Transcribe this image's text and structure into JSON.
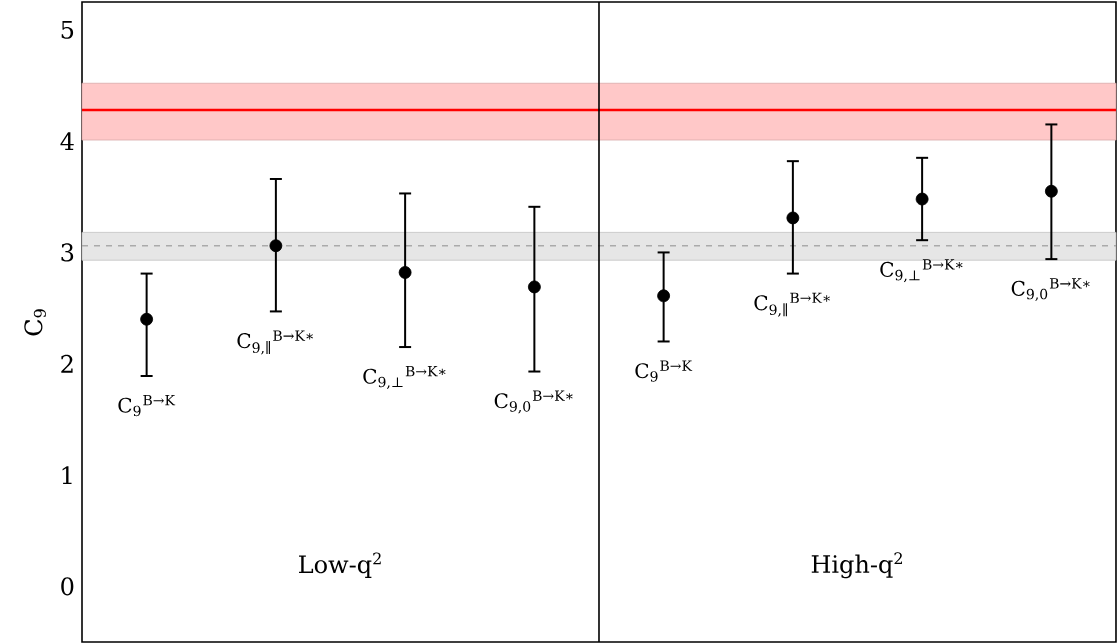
{
  "chart_data": {
    "type": "scatter",
    "ylabel": "C$_{9}$",
    "categories": [
      "C$_{9}$$^{B→K}$",
      "C$_{9,∥}$$^{B→K∗}$",
      "C$_{9,⊥}$$^{B→K∗}$",
      "C$_{9,0}$$^{B→K∗}$",
      "C$_{9}$$^{B→K}$",
      "C$_{9,∥}$$^{B→K∗}$",
      "C$_{9,⊥}$$^{B→K∗}$",
      "C$_{9,0}$$^{B→K∗}$"
    ],
    "values": [
      2.4,
      3.06,
      2.82,
      2.69,
      2.61,
      3.31,
      3.48,
      3.55
    ],
    "errors": [
      [
        1.89,
        2.81
      ],
      [
        2.47,
        3.66
      ],
      [
        2.15,
        3.53
      ],
      [
        1.93,
        3.41
      ],
      [
        2.2,
        3.0
      ],
      [
        2.81,
        3.82
      ],
      [
        3.11,
        3.85
      ],
      [
        2.94,
        4.15
      ]
    ],
    "color": "#000000",
    "marker": "circle",
    "ylim": [
      -0.5,
      5.25
    ],
    "yticks": [
      0,
      1,
      2,
      3,
      4,
      5
    ],
    "ref_lines": [
      {
        "axis": "y",
        "value": 4.28,
        "color": "#ff0000"
      },
      {
        "axis": "y",
        "value": 3.06,
        "color": "#aaaaaa",
        "line_style": "dashed"
      }
    ],
    "bands": [
      {
        "axis": "y",
        "from": 4.01,
        "to": 4.52,
        "color": "#ffc8c8"
      },
      {
        "axis": "y",
        "from": 2.93,
        "to": 3.18,
        "color": "#e6e6e6"
      }
    ],
    "annotations": [
      "Low-q$^{2}$",
      "High-q$^{2}$"
    ]
  }
}
